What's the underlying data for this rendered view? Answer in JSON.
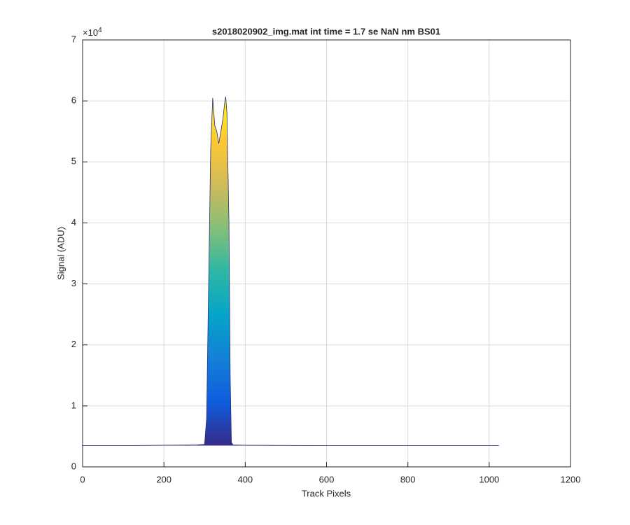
{
  "chart_data": {
    "type": "area",
    "title": "s2018020902_img.mat int time = 1.7 se  NaN nm BS01",
    "x_label": "Track Pixels",
    "y_label": "Signal (ADU)",
    "y_exponent": {
      "base": "×10",
      "power": "4"
    },
    "x": [
      0,
      100,
      200,
      280,
      300,
      305,
      310,
      315,
      320,
      325,
      330,
      335,
      340,
      345,
      350,
      352,
      355,
      360,
      363,
      366,
      370,
      400,
      600,
      800,
      1000,
      1024
    ],
    "values": [
      3500,
      3500,
      3550,
      3600,
      3700,
      8000,
      30000,
      52000,
      60500,
      56000,
      55000,
      53000,
      55000,
      57000,
      60000,
      60700,
      58000,
      40000,
      15000,
      4000,
      3600,
      3550,
      3500,
      3500,
      3500,
      3500
    ],
    "line_color": "#2a2a80",
    "colormap": [
      "#352a87",
      "#0f5cdd",
      "#1481d6",
      "#06a4ca",
      "#2eb7a4",
      "#87bf77",
      "#d1bb59",
      "#fec832",
      "#f9fb0e"
    ],
    "xlim": [
      0,
      1200
    ],
    "xticks": [
      0,
      200,
      400,
      600,
      800,
      1000,
      1200
    ],
    "ylim": [
      0,
      70000
    ],
    "yticks": [
      {
        "value": 0,
        "label": "0"
      },
      {
        "value": 10000,
        "label": "1"
      },
      {
        "value": 20000,
        "label": "2"
      },
      {
        "value": 30000,
        "label": "3"
      },
      {
        "value": 40000,
        "label": "4"
      },
      {
        "value": 50000,
        "label": "5"
      },
      {
        "value": 60000,
        "label": "6"
      },
      {
        "value": 70000,
        "label": "7"
      }
    ],
    "grid": true
  }
}
